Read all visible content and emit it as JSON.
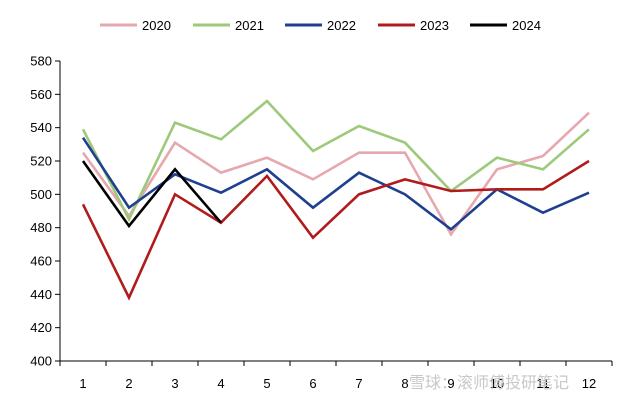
{
  "chart_data": {
    "type": "line",
    "title": "",
    "xlabel": "",
    "ylabel": "",
    "x": [
      1,
      2,
      3,
      4,
      5,
      6,
      7,
      8,
      9,
      10,
      11,
      12
    ],
    "x_tick_labels": [
      "1",
      "2",
      "3",
      "4",
      "5",
      "6",
      "7",
      "8",
      "9",
      "10",
      "11",
      "12"
    ],
    "ylim": [
      400,
      580
    ],
    "y_ticks": [
      400,
      420,
      440,
      460,
      480,
      500,
      520,
      540,
      560,
      580
    ],
    "grid": false,
    "legend_position": "top",
    "series": [
      {
        "name": "2020",
        "color": "#e6a8ae",
        "values": [
          525,
          487,
          531,
          513,
          522,
          509,
          525,
          525,
          476,
          515,
          523,
          549
        ]
      },
      {
        "name": "2021",
        "color": "#9dc97a",
        "values": [
          539,
          485,
          543,
          533,
          556,
          526,
          541,
          531,
          502,
          522,
          515,
          539
        ]
      },
      {
        "name": "2022",
        "color": "#1f3f8f",
        "values": [
          534,
          492,
          512,
          501,
          515,
          492,
          513,
          500,
          479,
          503,
          489,
          501
        ]
      },
      {
        "name": "2023",
        "color": "#b01c1c",
        "values": [
          494,
          438,
          500,
          483,
          511,
          474,
          500,
          509,
          502,
          503,
          503,
          520
        ]
      },
      {
        "name": "2024",
        "color": "#000000",
        "values": [
          520,
          481,
          515,
          483,
          null,
          null,
          null,
          null,
          null,
          null,
          null,
          null
        ]
      }
    ]
  },
  "watermark": "雪球：滚师傅投研笔记"
}
